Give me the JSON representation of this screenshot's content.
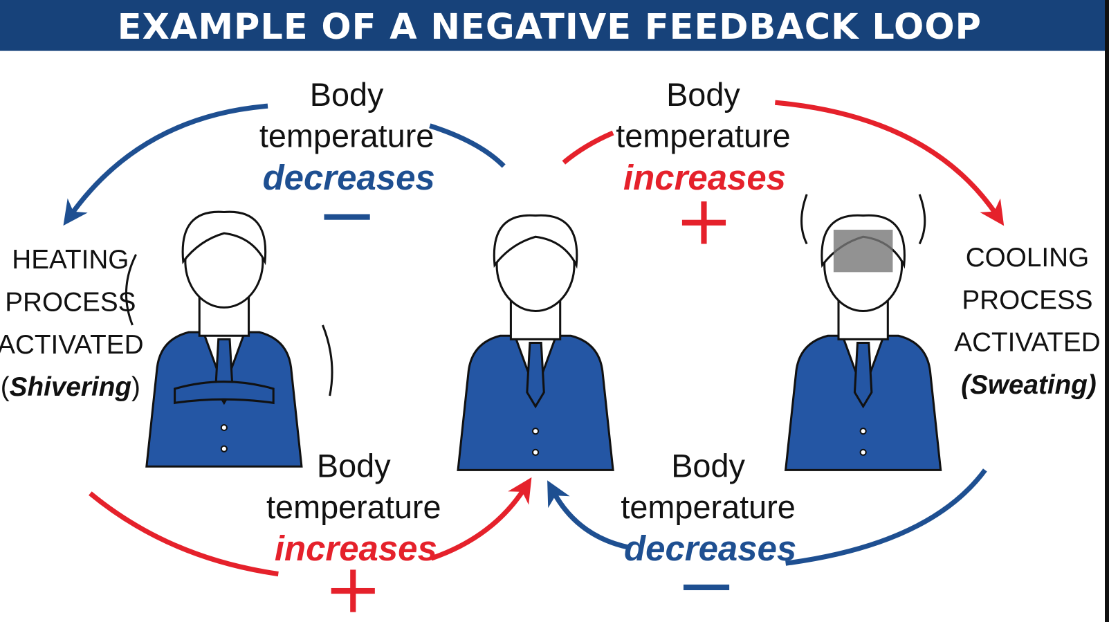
{
  "title": "EXAMPLE OF A NEGATIVE FEEDBACK LOOP",
  "colors": {
    "banner": "#17427a",
    "blue": "#1e4f91",
    "suit": "#2456a4",
    "red": "#e5212b"
  },
  "labels": {
    "top_left": {
      "line1": "Body",
      "line2": "temperature",
      "change": "decreases",
      "sign": "−"
    },
    "top_right": {
      "line1": "Body",
      "line2": "temperature",
      "change": "increases",
      "sign": "+"
    },
    "bottom_left": {
      "line1": "Body",
      "line2": "temperature",
      "change": "increases",
      "sign": "+"
    },
    "bottom_right": {
      "line1": "Body",
      "line2": "temperature",
      "change": "decreases",
      "sign": "−"
    }
  },
  "heating": {
    "lines": [
      "HEATING",
      "PROCESS",
      "ACTIVATED"
    ],
    "open": "(",
    "detail": "Shivering",
    "close": ")"
  },
  "cooling": {
    "lines": [
      "COOLING",
      "PROCESS",
      "ACTIVATED"
    ],
    "detail": "(Sweating)"
  }
}
